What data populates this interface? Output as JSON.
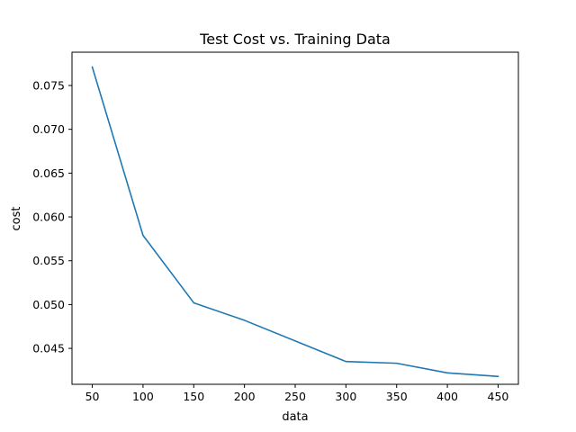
{
  "chart_data": {
    "type": "line",
    "title": "Test Cost vs. Training Data",
    "xlabel": "data",
    "ylabel": "cost",
    "xlim": [
      30,
      470
    ],
    "ylim": [
      0.0409,
      0.0788
    ],
    "x_ticks": [
      50,
      100,
      150,
      200,
      250,
      300,
      350,
      400,
      450
    ],
    "y_ticks": [
      0.045,
      0.05,
      0.055,
      0.06,
      0.065,
      0.07,
      0.075
    ],
    "y_tick_labels": [
      "0.045",
      "0.050",
      "0.055",
      "0.060",
      "0.065",
      "0.070",
      "0.075"
    ],
    "grid": false,
    "legend": "none",
    "series": [
      {
        "color": "#1f77b4",
        "x": [
          50,
          100,
          150,
          200,
          300,
          350,
          400,
          450
        ],
        "y": [
          0.0771,
          0.0579,
          0.0502,
          0.0482,
          0.0435,
          0.0433,
          0.0422,
          0.0418
        ]
      }
    ]
  }
}
